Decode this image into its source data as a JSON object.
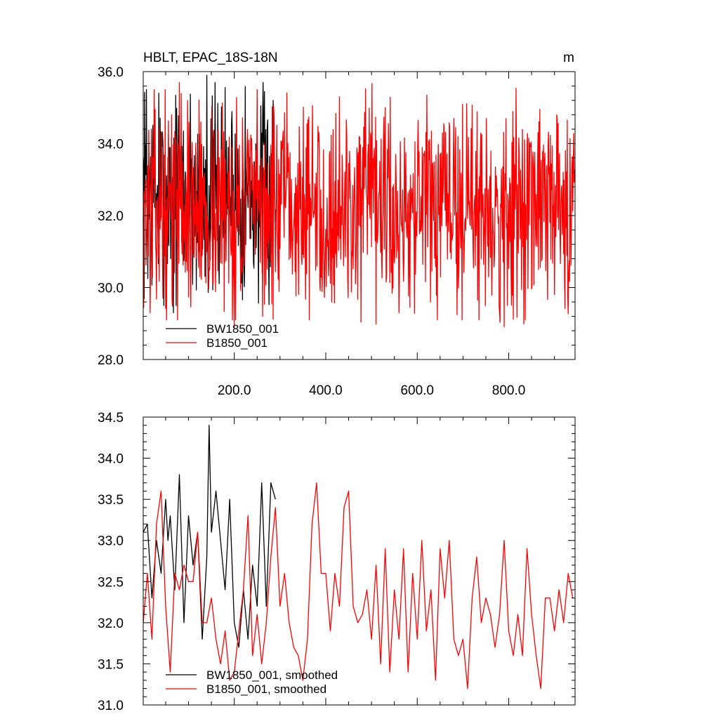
{
  "chart_data": [
    {
      "type": "line",
      "title": "HBLT, EPAC_18S-18N",
      "units": "m",
      "xlim": [
        1,
        945
      ],
      "ylim": [
        28.0,
        36.0
      ],
      "xticks": [
        200,
        400,
        600,
        800
      ],
      "xtick_labels": [
        "200.0",
        "400.0",
        "600.0",
        "800.0"
      ],
      "yticks": [
        28,
        30,
        32,
        34,
        36
      ],
      "ytick_labels": [
        "28.0",
        "30.0",
        "32.0",
        "34.0",
        "36.0"
      ],
      "grid": false,
      "legend_position": "bottom-left",
      "series": [
        {
          "name": "BW1850_001",
          "color": "#000000",
          "x_start": 1,
          "x_step": 1,
          "count": 290,
          "mean": 32.6,
          "min": 29.3,
          "max": 35.9,
          "peaks": [
            [
              8,
              35.5
            ],
            [
              35,
              35.4
            ],
            [
              67,
              29.3
            ],
            [
              140,
              35.9
            ],
            [
              285,
              35.2
            ]
          ],
          "note_seed": 7
        },
        {
          "name": "B1850_001",
          "color": "#ff0000",
          "x_start": 1,
          "x_step": 1,
          "count": 945,
          "mean": 32.2,
          "min": 28.9,
          "max": 35.7,
          "peaks": [
            [
              80,
              35.7
            ],
            [
              200,
              28.9
            ],
            [
              430,
              35.3
            ],
            [
              530,
              35.0
            ],
            [
              560,
              29.3
            ],
            [
              644,
              29.1
            ],
            [
              780,
              29.3
            ]
          ],
          "note_seed": 13
        }
      ]
    },
    {
      "type": "line",
      "title": "",
      "xlim": [
        1,
        945
      ],
      "ylim": [
        31.0,
        34.5
      ],
      "yticks": [
        31.0,
        31.5,
        32.0,
        32.5,
        33.0,
        33.5,
        34.0,
        34.5
      ],
      "ytick_labels": [
        "31.0",
        "31.5",
        "32.0",
        "32.5",
        "33.0",
        "33.5",
        "34.0",
        "34.5"
      ],
      "grid": false,
      "legend_position": "bottom-left",
      "series": [
        {
          "name": "BW1850_001, smoothed",
          "color": "#000000",
          "x": [
            1,
            10,
            20,
            30,
            40,
            50,
            55,
            60,
            70,
            80,
            90,
            100,
            110,
            120,
            130,
            140,
            145,
            150,
            160,
            170,
            180,
            190,
            200,
            210,
            220,
            230,
            240,
            250,
            260,
            270,
            280,
            290
          ],
          "y": [
            33.1,
            33.2,
            32.3,
            33.0,
            32.6,
            33.5,
            33.0,
            33.3,
            32.4,
            33.8,
            32.0,
            33.3,
            32.7,
            33.1,
            31.8,
            32.8,
            34.4,
            33.1,
            33.6,
            33.0,
            32.4,
            33.5,
            32.0,
            31.7,
            32.4,
            31.8,
            32.7,
            32.2,
            33.7,
            32.2,
            33.7,
            33.5
          ]
        },
        {
          "name": "B1850_001, smoothed",
          "color": "#ff0000",
          "x": [
            1,
            10,
            20,
            30,
            40,
            50,
            60,
            70,
            80,
            90,
            100,
            110,
            120,
            130,
            140,
            150,
            160,
            170,
            180,
            190,
            200,
            210,
            220,
            230,
            240,
            250,
            260,
            270,
            280,
            290,
            300,
            310,
            320,
            330,
            340,
            350,
            360,
            370,
            380,
            390,
            400,
            410,
            420,
            430,
            440,
            450,
            460,
            470,
            480,
            490,
            500,
            510,
            520,
            530,
            540,
            550,
            560,
            570,
            580,
            590,
            600,
            610,
            620,
            630,
            640,
            650,
            660,
            670,
            680,
            690,
            700,
            710,
            720,
            730,
            740,
            750,
            760,
            770,
            780,
            790,
            800,
            810,
            820,
            830,
            840,
            850,
            860,
            870,
            880,
            890,
            900,
            910,
            920,
            930,
            940
          ],
          "y": [
            32.0,
            32.6,
            31.8,
            33.2,
            33.6,
            32.2,
            31.4,
            32.6,
            32.4,
            32.7,
            32.5,
            32.5,
            33.1,
            32.0,
            32.0,
            32.3,
            31.8,
            31.5,
            31.9,
            31.3,
            31.4,
            31.9,
            32.4,
            33.3,
            31.6,
            32.1,
            31.5,
            32.0,
            32.8,
            33.4,
            32.2,
            32.6,
            32.0,
            31.7,
            31.6,
            31.3,
            31.8,
            33.2,
            33.7,
            32.6,
            32.6,
            31.9,
            32.6,
            32.2,
            33.4,
            33.6,
            32.2,
            32.0,
            32.1,
            32.4,
            31.8,
            32.7,
            31.5,
            32.9,
            31.4,
            32.4,
            31.8,
            32.9,
            31.4,
            32.6,
            31.8,
            33.0,
            31.9,
            32.4,
            31.3,
            32.9,
            32.3,
            33.0,
            31.8,
            31.6,
            31.8,
            31.2,
            32.3,
            32.8,
            32.0,
            32.3,
            32.1,
            31.7,
            32.1,
            33.0,
            31.9,
            31.6,
            32.1,
            31.6,
            32.9,
            32.1,
            31.6,
            31.2,
            32.3,
            32.3,
            31.9,
            32.4,
            32.0,
            32.6,
            32.3
          ]
        }
      ]
    }
  ]
}
